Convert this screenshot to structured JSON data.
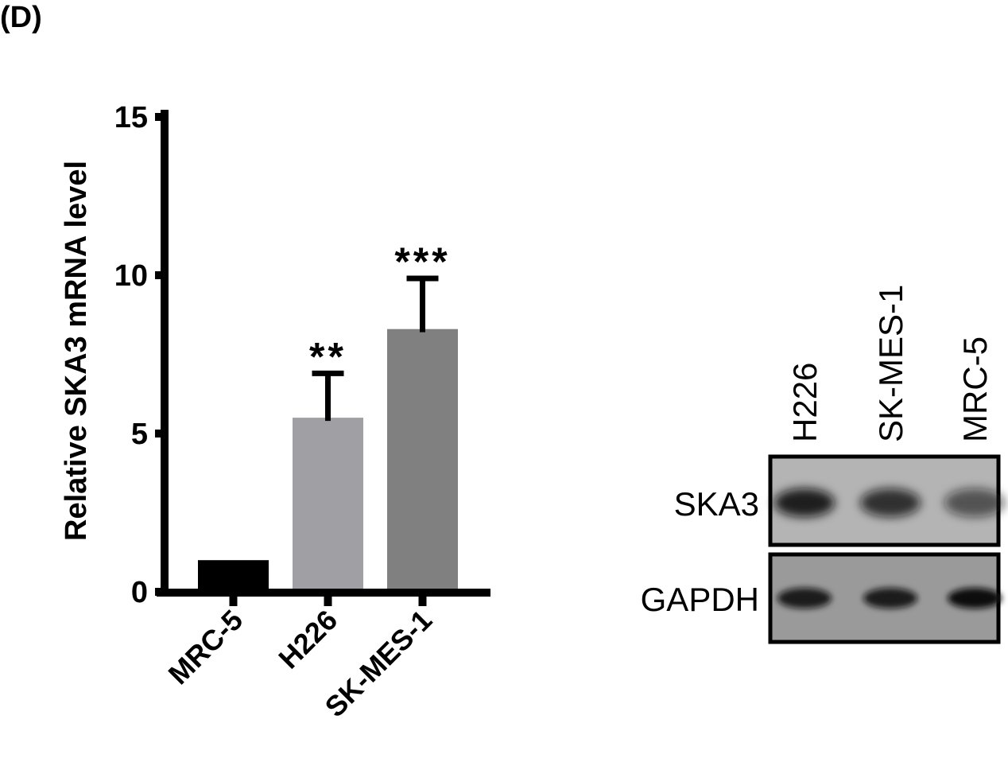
{
  "panel_label": "(D)",
  "chart_data": {
    "type": "bar",
    "title": "",
    "xlabel": "",
    "ylabel": "Relative SKA3 mRNA level",
    "ylim": [
      0,
      15
    ],
    "yticks": [
      "0",
      "5",
      "10",
      "15"
    ],
    "categories": [
      "MRC-5",
      "H226",
      "SK-MES-1"
    ],
    "values": [
      1.0,
      5.5,
      8.3
    ],
    "error_upper": [
      1.0,
      6.9,
      9.9
    ],
    "significance": [
      "",
      "**",
      "***"
    ],
    "colors": [
      "#000000",
      "#a0a0a4",
      "#808080"
    ],
    "grid": false
  },
  "western_blot": {
    "lanes": [
      "H226",
      "SK-MES-1",
      "MRC-5"
    ],
    "rows": [
      "SKA3",
      "GAPDH"
    ]
  }
}
